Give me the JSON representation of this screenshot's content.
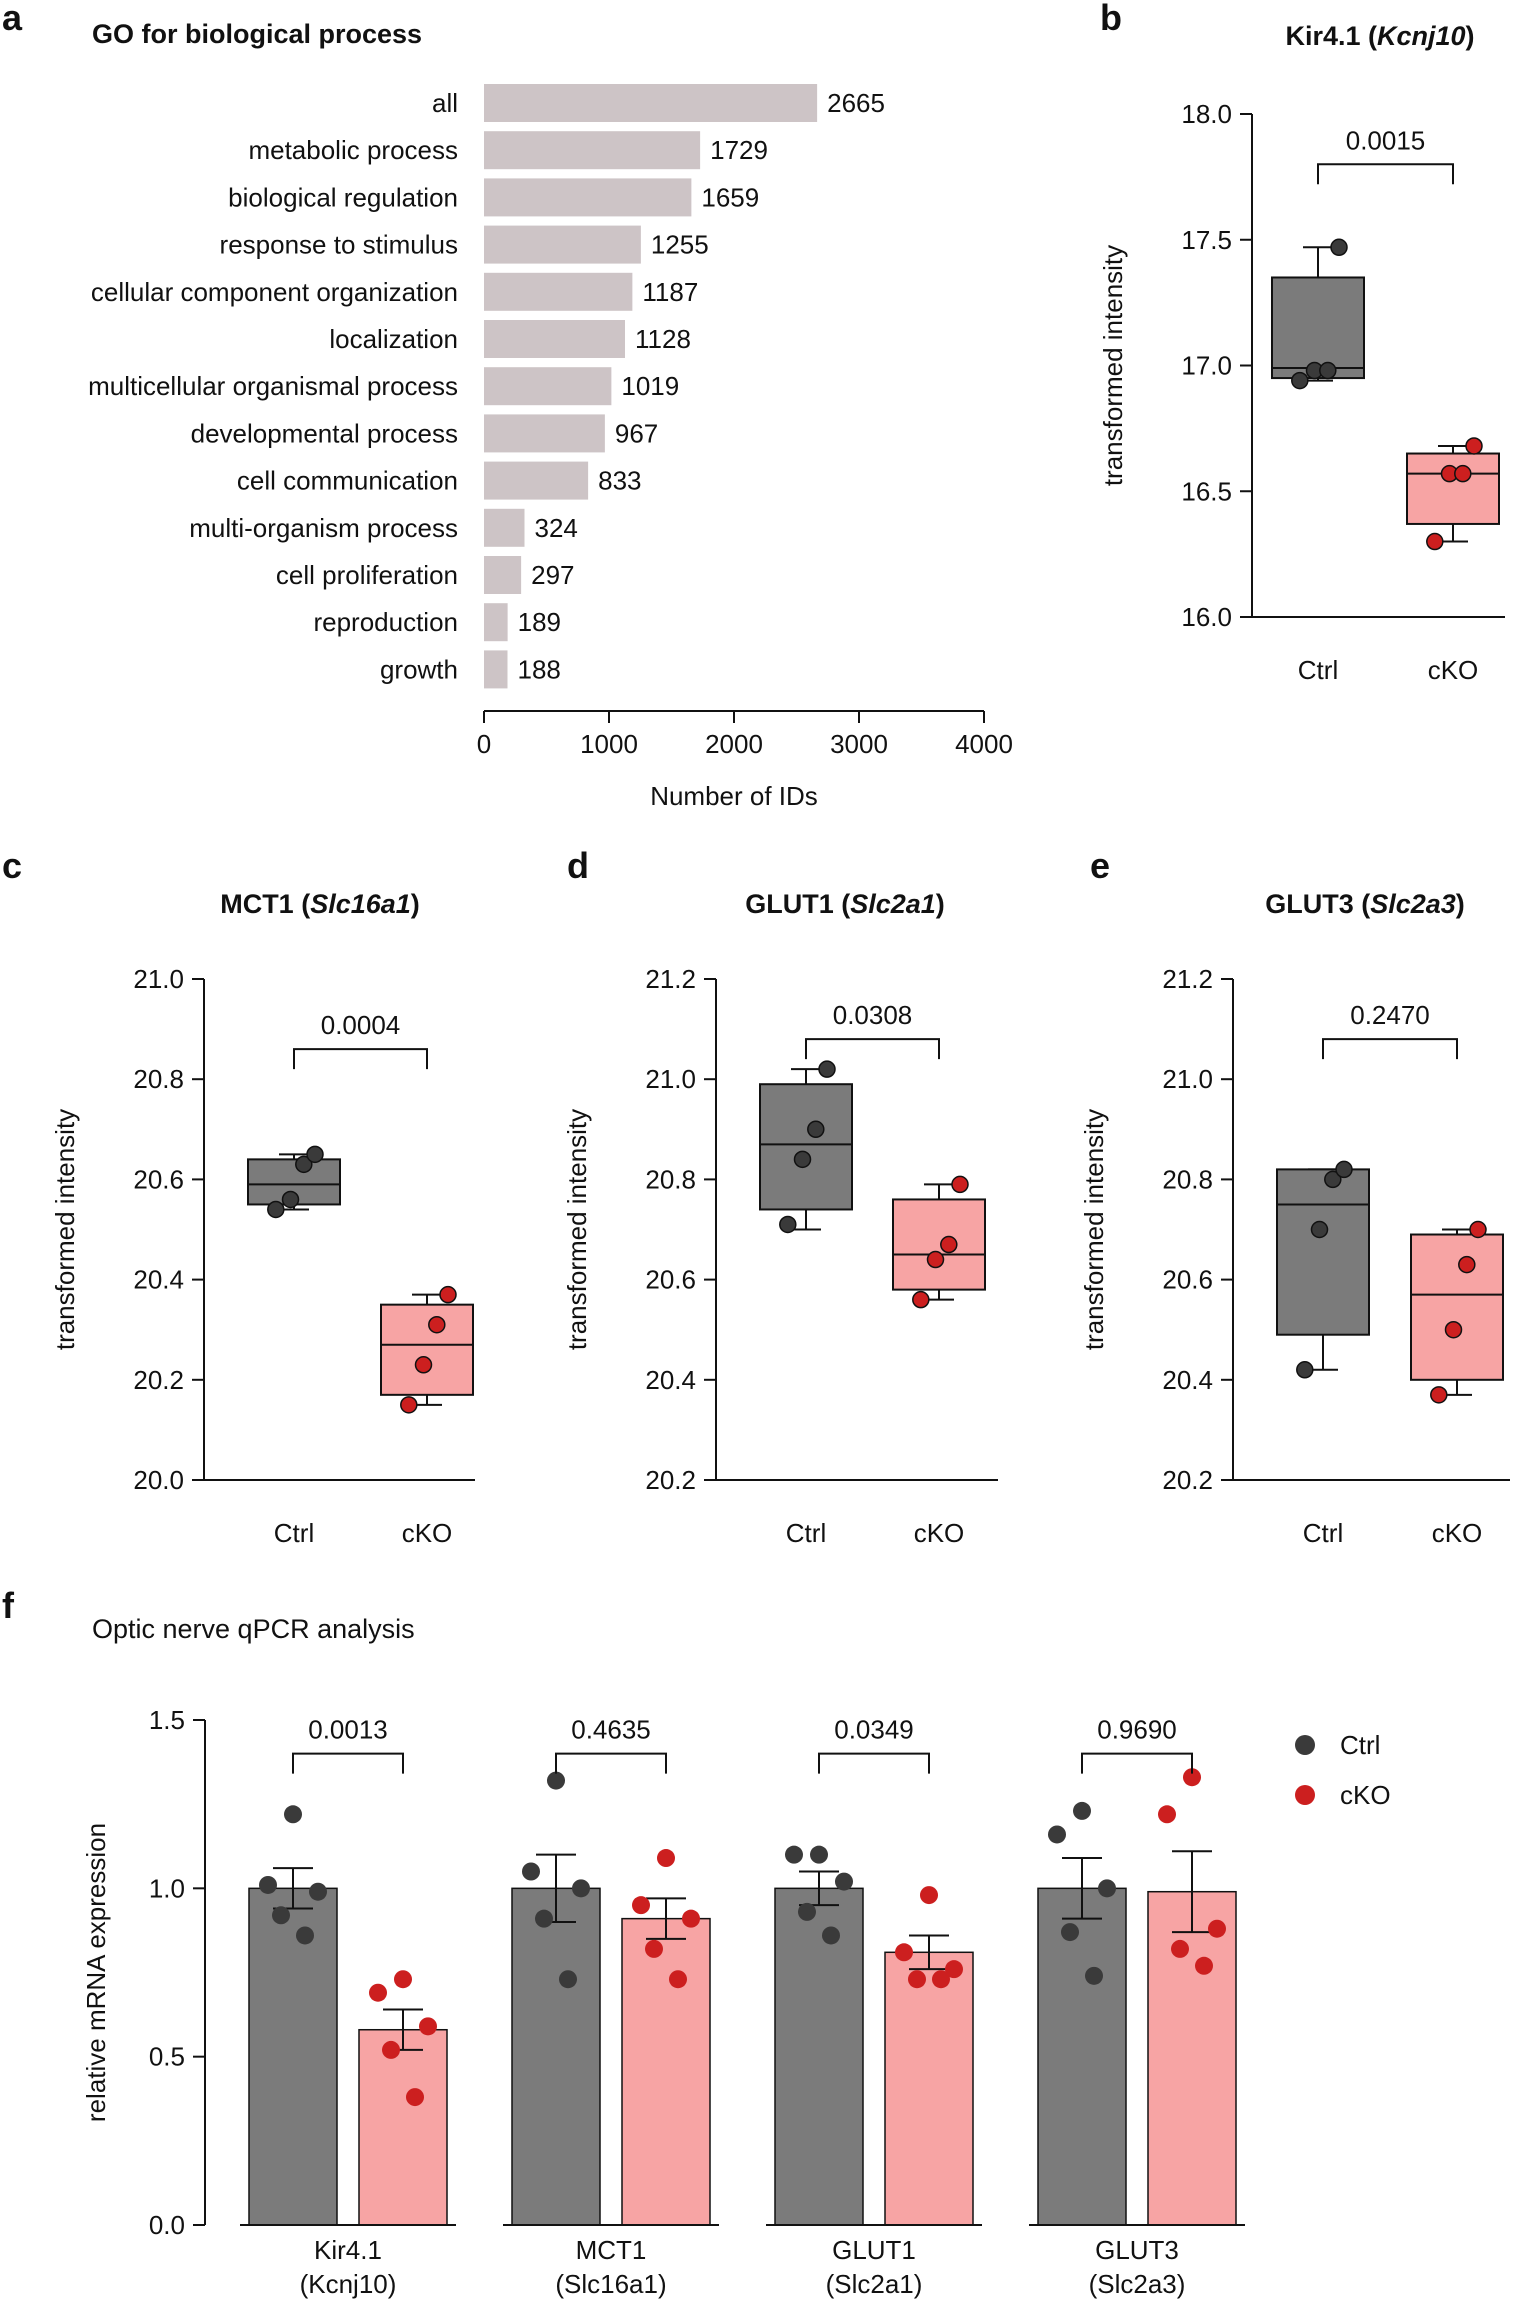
{
  "panels": {
    "a": {
      "letter": "a",
      "title": "GO for biological process"
    },
    "b": {
      "letter": "b",
      "title_main": "Kir4.1 (",
      "title_italic": "Kcnj10",
      "title_end": ")"
    },
    "c": {
      "letter": "c",
      "title_main": "MCT1 (",
      "title_italic": "Slc16a1",
      "title_end": ")"
    },
    "d": {
      "letter": "d",
      "title_main": "GLUT1 (",
      "title_italic": "Slc2a1",
      "title_end": ")"
    },
    "e": {
      "letter": "e",
      "title_main": "GLUT3 (",
      "title_italic": "Slc2a3",
      "title_end": ")"
    },
    "f": {
      "letter": "f",
      "title": "Optic nerve qPCR analysis"
    }
  },
  "colors": {
    "go_bar": "#cdc4c6",
    "ctrl_fill": "#7b7b7b",
    "ctrl_dot": "#3a3a3a",
    "cko_fill": "#f7a4a4",
    "cko_dot": "#cc1f1f",
    "axis": "#111111"
  },
  "chart_data": [
    {
      "panel": "a",
      "type": "bar",
      "orientation": "horizontal",
      "title": "GO for biological process",
      "categories": [
        "all",
        "metabolic process",
        "biological regulation",
        "response to stimulus",
        "cellular component organization",
        "localization",
        "multicellular organismal process",
        "developmental process",
        "cell communication",
        "multi-organism process",
        "cell proliferation",
        "reproduction",
        "growth"
      ],
      "values": [
        2665,
        1729,
        1659,
        1255,
        1187,
        1128,
        1019,
        967,
        833,
        324,
        297,
        189,
        188
      ],
      "xlabel": "Number of IDs",
      "xlim": [
        0,
        4000
      ],
      "xticks": [
        "0",
        "1000",
        "2000",
        "3000",
        "4000"
      ],
      "grid": false
    },
    {
      "panel": "b",
      "type": "box",
      "title": "Kir4.1 (Kcnj10)",
      "ylabel": "transformed intensity",
      "ylim": [
        16.0,
        18.0
      ],
      "yticks": [
        "16.0",
        "16.5",
        "17.0",
        "17.5",
        "18.0"
      ],
      "categories": [
        "Ctrl",
        "cKO"
      ],
      "groups": [
        {
          "name": "Ctrl",
          "min": 16.94,
          "q1": 16.95,
          "median": 16.99,
          "q3": 17.35,
          "max": 17.47,
          "points": [
            16.94,
            16.98,
            16.98,
            17.47
          ]
        },
        {
          "name": "cKO",
          "min": 16.3,
          "q1": 16.37,
          "median": 16.57,
          "q3": 16.65,
          "max": 16.68,
          "points": [
            16.3,
            16.57,
            16.57,
            16.68
          ]
        }
      ],
      "comparison": {
        "label": "0.0015",
        "level": 17.8
      }
    },
    {
      "panel": "c",
      "type": "box",
      "title": "MCT1 (Slc16a1)",
      "ylabel": "transformed intensity",
      "ylim": [
        20.0,
        21.0
      ],
      "yticks": [
        "20.0",
        "20.2",
        "20.4",
        "20.6",
        "20.8",
        "21.0"
      ],
      "categories": [
        "Ctrl",
        "cKO"
      ],
      "groups": [
        {
          "name": "Ctrl",
          "min": 20.54,
          "q1": 20.55,
          "median": 20.59,
          "q3": 20.64,
          "max": 20.65,
          "points": [
            20.54,
            20.56,
            20.63,
            20.65
          ]
        },
        {
          "name": "cKO",
          "min": 20.15,
          "q1": 20.17,
          "median": 20.27,
          "q3": 20.35,
          "max": 20.37,
          "points": [
            20.15,
            20.23,
            20.31,
            20.37
          ]
        }
      ],
      "comparison": {
        "label": "0.0004",
        "level": 20.86
      }
    },
    {
      "panel": "d",
      "type": "box",
      "title": "GLUT1 (Slc2a1)",
      "ylabel": "transformed intensity",
      "ylim": [
        20.2,
        21.2
      ],
      "yticks": [
        "20.2",
        "20.4",
        "20.6",
        "20.8",
        "21.0",
        "21.2"
      ],
      "categories": [
        "Ctrl",
        "cKO"
      ],
      "groups": [
        {
          "name": "Ctrl",
          "min": 20.7,
          "q1": 20.74,
          "median": 20.87,
          "q3": 20.99,
          "max": 21.02,
          "points": [
            20.71,
            20.84,
            20.9,
            21.02
          ]
        },
        {
          "name": "cKO",
          "min": 20.56,
          "q1": 20.58,
          "median": 20.65,
          "q3": 20.76,
          "max": 20.79,
          "points": [
            20.56,
            20.64,
            20.67,
            20.79
          ]
        }
      ],
      "comparison": {
        "label": "0.0308",
        "level": 21.08
      }
    },
    {
      "panel": "e",
      "type": "box",
      "title": "GLUT3 (Slc2a3)",
      "ylabel": "transformed intensity",
      "ylim": [
        20.2,
        21.2
      ],
      "yticks": [
        "20.2",
        "20.4",
        "20.6",
        "20.8",
        "21.0",
        "21.2"
      ],
      "categories": [
        "Ctrl",
        "cKO"
      ],
      "groups": [
        {
          "name": "Ctrl",
          "min": 20.42,
          "q1": 20.49,
          "median": 20.75,
          "q3": 20.82,
          "max": 20.82,
          "points": [
            20.42,
            20.7,
            20.8,
            20.82
          ]
        },
        {
          "name": "cKO",
          "min": 20.37,
          "q1": 20.4,
          "median": 20.57,
          "q3": 20.69,
          "max": 20.7,
          "points": [
            20.37,
            20.5,
            20.63,
            20.7
          ]
        }
      ],
      "comparison": {
        "label": "0.2470",
        "level": 21.08
      }
    },
    {
      "panel": "f",
      "type": "bar",
      "title": "Optic nerve qPCR analysis",
      "ylabel": "relative mRNA expression",
      "ylim": [
        0.0,
        1.5
      ],
      "yticks": [
        "0.0",
        "0.5",
        "1.0",
        "1.5"
      ],
      "categories": [
        {
          "main": "Kir4.1",
          "gene": "Kcnj10"
        },
        {
          "main": "MCT1",
          "gene": "Slc16a1"
        },
        {
          "main": "GLUT1",
          "gene": "Slc2a1"
        },
        {
          "main": "GLUT3",
          "gene": "Slc2a3"
        }
      ],
      "series": [
        {
          "name": "Ctrl",
          "values": [
            1.0,
            1.0,
            1.0,
            1.0
          ],
          "sem": [
            0.06,
            0.1,
            0.05,
            0.09
          ],
          "points": [
            [
              1.22,
              1.01,
              0.99,
              0.92,
              0.86
            ],
            [
              1.32,
              1.05,
              1.0,
              0.91,
              0.73
            ],
            [
              1.1,
              1.1,
              1.02,
              0.93,
              0.86
            ],
            [
              1.23,
              1.16,
              1.0,
              0.87,
              0.74
            ]
          ]
        },
        {
          "name": "cKO",
          "values": [
            0.58,
            0.91,
            0.81,
            0.99
          ],
          "sem": [
            0.06,
            0.06,
            0.05,
            0.12
          ],
          "points": [
            [
              0.73,
              0.69,
              0.59,
              0.52,
              0.38
            ],
            [
              1.09,
              0.95,
              0.91,
              0.82,
              0.73
            ],
            [
              0.98,
              0.81,
              0.76,
              0.73,
              0.73
            ],
            [
              1.33,
              1.22,
              0.88,
              0.82,
              0.77
            ]
          ]
        }
      ],
      "comparisons": [
        "0.0013",
        "0.4635",
        "0.0349",
        "0.9690"
      ],
      "legend": {
        "position": "top-right",
        "entries": [
          "Ctrl",
          "cKO"
        ]
      }
    }
  ]
}
